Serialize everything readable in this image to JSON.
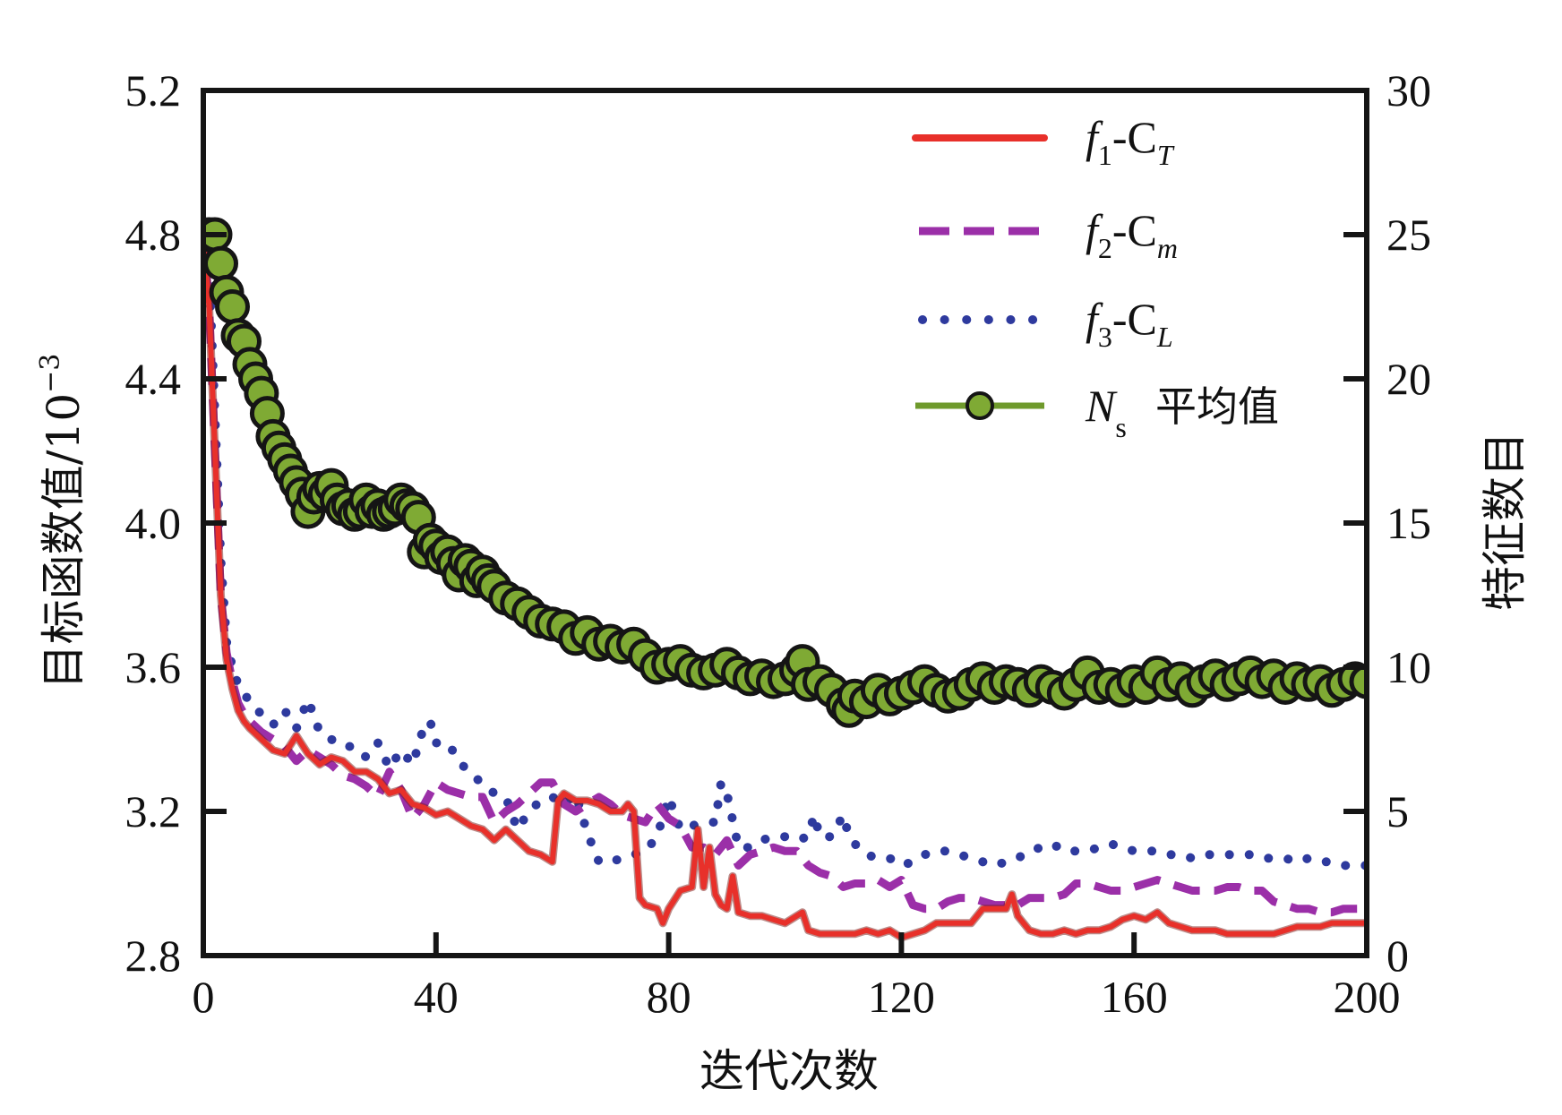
{
  "chart_data": {
    "type": "line",
    "title": "",
    "xlabel": "迭代次数",
    "ylabel": "目标函数值/10",
    "ylabel_exponent": "−3",
    "y2label": "特征数目",
    "xlim": [
      0,
      200
    ],
    "ylim": [
      2.8,
      5.2
    ],
    "y2lim": [
      0,
      30
    ],
    "grid": false,
    "legend_position": "top-right",
    "x_ticks": [
      "0",
      "40",
      "80",
      "120",
      "160",
      "200"
    ],
    "x_tick_values": [
      0,
      40,
      80,
      120,
      160,
      200
    ],
    "y_ticks": [
      "2.8",
      "3.2",
      "3.6",
      "4.0",
      "4.4",
      "4.8",
      "5.2"
    ],
    "y_tick_values": [
      2.8,
      3.2,
      3.6,
      4.0,
      4.4,
      4.8,
      5.2
    ],
    "y2_ticks": [
      "0",
      "5",
      "10",
      "15",
      "20",
      "25",
      "30"
    ],
    "y2_tick_values": [
      0,
      5,
      10,
      15,
      20,
      25,
      30
    ],
    "series": [
      {
        "name": "f1-CT",
        "label_main": "f",
        "label_sub1": "1",
        "label_mid": "-C",
        "label_sub2": "T",
        "axis": "left",
        "style": "solid",
        "color": "#e8302a",
        "x": [
          0,
          1,
          2,
          3,
          4,
          5,
          6,
          7,
          8,
          10,
          12,
          14,
          16,
          18,
          20,
          22,
          24,
          26,
          28,
          30,
          32,
          34,
          36,
          38,
          40,
          42,
          44,
          46,
          48,
          50,
          52,
          54,
          56,
          58,
          60,
          61,
          62,
          64,
          66,
          68,
          70,
          72,
          73,
          74,
          75,
          76,
          78,
          79,
          80,
          82,
          84,
          85,
          86,
          87,
          88,
          89,
          90,
          91,
          92,
          94,
          96,
          98,
          100,
          102,
          103,
          104,
          106,
          108,
          110,
          112,
          114,
          116,
          118,
          120,
          122,
          124,
          126,
          128,
          130,
          132,
          134,
          136,
          138,
          139,
          140,
          142,
          144,
          146,
          148,
          150,
          152,
          154,
          156,
          158,
          160,
          162,
          164,
          166,
          168,
          170,
          172,
          174,
          176,
          178,
          180,
          182,
          184,
          186,
          188,
          190,
          192,
          194,
          196,
          198,
          200
        ],
        "values": [
          4.78,
          4.6,
          4.2,
          3.8,
          3.62,
          3.54,
          3.48,
          3.45,
          3.43,
          3.4,
          3.37,
          3.36,
          3.41,
          3.36,
          3.33,
          3.35,
          3.34,
          3.31,
          3.31,
          3.29,
          3.25,
          3.26,
          3.22,
          3.21,
          3.19,
          3.2,
          3.18,
          3.16,
          3.15,
          3.12,
          3.15,
          3.12,
          3.09,
          3.08,
          3.06,
          3.23,
          3.25,
          3.23,
          3.23,
          3.22,
          3.2,
          3.2,
          3.22,
          3.2,
          2.96,
          2.94,
          2.93,
          2.89,
          2.93,
          2.98,
          2.99,
          3.15,
          2.99,
          3.1,
          2.97,
          2.94,
          2.93,
          3.02,
          2.92,
          2.91,
          2.91,
          2.9,
          2.89,
          2.91,
          2.92,
          2.87,
          2.86,
          2.86,
          2.86,
          2.86,
          2.87,
          2.86,
          2.87,
          2.85,
          2.86,
          2.87,
          2.89,
          2.89,
          2.89,
          2.89,
          2.93,
          2.93,
          2.93,
          2.97,
          2.91,
          2.87,
          2.86,
          2.86,
          2.87,
          2.86,
          2.87,
          2.87,
          2.88,
          2.9,
          2.91,
          2.9,
          2.92,
          2.89,
          2.88,
          2.87,
          2.87,
          2.87,
          2.86,
          2.86,
          2.86,
          2.86,
          2.86,
          2.87,
          2.88,
          2.88,
          2.88,
          2.89,
          2.89,
          2.89,
          2.89
        ]
      },
      {
        "name": "f2-Cm",
        "label_main": "f",
        "label_sub1": "2",
        "label_mid": "-C",
        "label_sub2": "m",
        "axis": "left",
        "style": "dashed",
        "color": "#9b2fa8",
        "x": [
          0,
          1,
          2,
          3,
          4,
          5,
          6,
          7,
          8,
          10,
          12,
          14,
          16,
          18,
          20,
          22,
          24,
          26,
          28,
          30,
          32,
          34,
          36,
          38,
          40,
          42,
          44,
          46,
          48,
          50,
          52,
          54,
          56,
          58,
          60,
          62,
          64,
          66,
          68,
          70,
          72,
          74,
          76,
          78,
          80,
          82,
          84,
          86,
          88,
          90,
          92,
          94,
          96,
          98,
          100,
          102,
          104,
          106,
          108,
          110,
          112,
          114,
          116,
          118,
          120,
          122,
          124,
          126,
          128,
          130,
          132,
          134,
          136,
          138,
          140,
          142,
          144,
          146,
          148,
          150,
          152,
          154,
          156,
          158,
          160,
          162,
          164,
          166,
          168,
          170,
          172,
          174,
          176,
          178,
          180,
          182,
          184,
          186,
          188,
          190,
          192,
          194,
          196,
          198,
          200
        ],
        "values": [
          4.8,
          4.6,
          4.2,
          3.8,
          3.64,
          3.56,
          3.5,
          3.47,
          3.45,
          3.42,
          3.4,
          3.38,
          3.34,
          3.37,
          3.35,
          3.33,
          3.3,
          3.29,
          3.27,
          3.24,
          3.31,
          3.26,
          3.18,
          3.22,
          3.28,
          3.26,
          3.25,
          3.24,
          3.24,
          3.17,
          3.2,
          3.22,
          3.25,
          3.28,
          3.28,
          3.22,
          3.2,
          3.22,
          3.24,
          3.22,
          3.19,
          3.18,
          3.17,
          3.22,
          3.18,
          3.16,
          3.1,
          3.1,
          3.08,
          3.12,
          3.05,
          3.08,
          3.09,
          3.1,
          3.09,
          3.09,
          3.05,
          3.03,
          3.02,
          2.99,
          3.0,
          3.0,
          3.01,
          2.99,
          3.01,
          2.94,
          2.93,
          2.93,
          2.95,
          2.96,
          2.96,
          2.95,
          2.94,
          2.94,
          2.94,
          2.96,
          2.96,
          2.96,
          2.97,
          3.0,
          3.0,
          2.99,
          2.98,
          2.98,
          2.99,
          3.0,
          3.01,
          3.0,
          2.99,
          2.98,
          2.98,
          2.98,
          2.99,
          2.99,
          2.98,
          2.98,
          2.95,
          2.94,
          2.93,
          2.93,
          2.92,
          2.92,
          2.93,
          2.93,
          2.93
        ]
      },
      {
        "name": "f3-CL",
        "label_main": "f",
        "label_sub1": "3",
        "label_mid": "-C",
        "label_sub2": "L",
        "axis": "left",
        "style": "dotted",
        "color": "#2e3a9e",
        "x": [
          0,
          1,
          2,
          3,
          4,
          5,
          6,
          7,
          8,
          10,
          12,
          14,
          16,
          18,
          20,
          22,
          24,
          26,
          28,
          30,
          32,
          34,
          36,
          38,
          39,
          40,
          42,
          44,
          46,
          48,
          50,
          52,
          54,
          56,
          58,
          60,
          62,
          64,
          66,
          68,
          70,
          72,
          74,
          76,
          78,
          80,
          82,
          84,
          86,
          88,
          89,
          90,
          92,
          94,
          96,
          98,
          100,
          102,
          104,
          105,
          106,
          108,
          110,
          111,
          112,
          114,
          116,
          118,
          120,
          122,
          124,
          126,
          128,
          130,
          132,
          134,
          136,
          138,
          140,
          142,
          144,
          146,
          148,
          150,
          152,
          154,
          156,
          158,
          160,
          162,
          164,
          166,
          168,
          170,
          172,
          174,
          176,
          178,
          180,
          182,
          184,
          186,
          188,
          190,
          192,
          194,
          196,
          198,
          200
        ],
        "values": [
          4.82,
          4.7,
          4.3,
          3.9,
          3.67,
          3.6,
          3.55,
          3.53,
          3.5,
          3.47,
          3.44,
          3.48,
          3.43,
          3.51,
          3.42,
          3.4,
          3.38,
          3.38,
          3.35,
          3.39,
          3.32,
          3.37,
          3.33,
          3.44,
          3.45,
          3.39,
          3.39,
          3.34,
          3.3,
          3.28,
          3.25,
          3.24,
          3.15,
          3.2,
          3.23,
          3.24,
          3.22,
          3.25,
          3.14,
          3.06,
          3.06,
          3.07,
          3.08,
          3.09,
          3.13,
          3.24,
          3.15,
          3.16,
          3.17,
          3.17,
          3.28,
          3.25,
          3.1,
          3.1,
          3.12,
          3.13,
          3.13,
          3.12,
          3.13,
          3.19,
          3.13,
          3.13,
          3.19,
          3.13,
          3.11,
          3.08,
          3.07,
          3.07,
          3.05,
          3.06,
          3.08,
          3.09,
          3.09,
          3.08,
          3.07,
          3.06,
          3.05,
          3.06,
          3.07,
          3.09,
          3.1,
          3.11,
          3.09,
          3.09,
          3.09,
          3.1,
          3.11,
          3.1,
          3.09,
          3.09,
          3.09,
          3.08,
          3.08,
          3.07,
          3.08,
          3.08,
          3.08,
          3.08,
          3.08,
          3.07,
          3.07,
          3.07,
          3.06,
          3.07,
          3.06,
          3.06,
          3.05,
          3.05,
          3.05
        ]
      },
      {
        "name": "Ns平均值",
        "label_main": "N",
        "label_sub1": "s",
        "label_cn": "平均值",
        "axis": "right",
        "style": "line-marker",
        "color": "#7faa34",
        "marker_edge": "#151515",
        "x": [
          1,
          2,
          3,
          4,
          5,
          6,
          7,
          8,
          9,
          10,
          11,
          12,
          13,
          14,
          15,
          16,
          17,
          18,
          19,
          20,
          21,
          22,
          23,
          24,
          25,
          26,
          27,
          28,
          29,
          30,
          31,
          32,
          33,
          34,
          35,
          36,
          37,
          38,
          39,
          40,
          41,
          42,
          43,
          44,
          45,
          46,
          47,
          48,
          49,
          50,
          52,
          54,
          56,
          58,
          60,
          62,
          64,
          66,
          68,
          70,
          72,
          74,
          76,
          78,
          80,
          82,
          84,
          86,
          88,
          90,
          92,
          94,
          96,
          98,
          100,
          102,
          103,
          104,
          106,
          108,
          110,
          111,
          112,
          114,
          116,
          118,
          120,
          122,
          124,
          126,
          128,
          130,
          132,
          134,
          136,
          138,
          140,
          142,
          144,
          146,
          148,
          150,
          152,
          154,
          156,
          158,
          160,
          162,
          164,
          166,
          168,
          170,
          172,
          174,
          176,
          178,
          180,
          182,
          184,
          186,
          188,
          190,
          192,
          194,
          196,
          198,
          200
        ],
        "values": [
          25.0,
          25.0,
          24.0,
          23.0,
          22.5,
          21.5,
          21.3,
          20.5,
          20.0,
          19.5,
          18.8,
          18.0,
          17.6,
          17.2,
          16.8,
          16.4,
          16.0,
          15.4,
          15.9,
          16.2,
          16.0,
          16.3,
          15.8,
          15.5,
          15.6,
          15.3,
          15.4,
          15.8,
          15.4,
          15.6,
          15.3,
          15.4,
          15.5,
          15.8,
          15.6,
          15.5,
          15.2,
          14.0,
          14.4,
          14.2,
          13.8,
          14.0,
          13.6,
          13.2,
          13.7,
          13.5,
          13.0,
          13.3,
          13.0,
          12.8,
          12.4,
          12.2,
          11.9,
          11.6,
          11.5,
          11.4,
          11.0,
          11.2,
          10.8,
          10.9,
          10.7,
          10.8,
          10.4,
          10.0,
          10.1,
          10.2,
          9.9,
          9.8,
          9.9,
          10.1,
          9.8,
          9.6,
          9.7,
          9.5,
          9.6,
          9.9,
          10.2,
          9.4,
          9.5,
          9.2,
          8.7,
          8.5,
          9.0,
          8.8,
          9.2,
          8.9,
          9.1,
          9.3,
          9.5,
          9.2,
          9.0,
          9.1,
          9.4,
          9.6,
          9.3,
          9.5,
          9.4,
          9.2,
          9.5,
          9.3,
          9.1,
          9.4,
          9.8,
          9.3,
          9.4,
          9.2,
          9.5,
          9.3,
          9.8,
          9.4,
          9.6,
          9.2,
          9.5,
          9.7,
          9.4,
          9.6,
          9.8,
          9.5,
          9.7,
          9.3,
          9.6,
          9.4,
          9.5,
          9.2,
          9.4,
          9.6,
          9.5
        ]
      }
    ]
  }
}
